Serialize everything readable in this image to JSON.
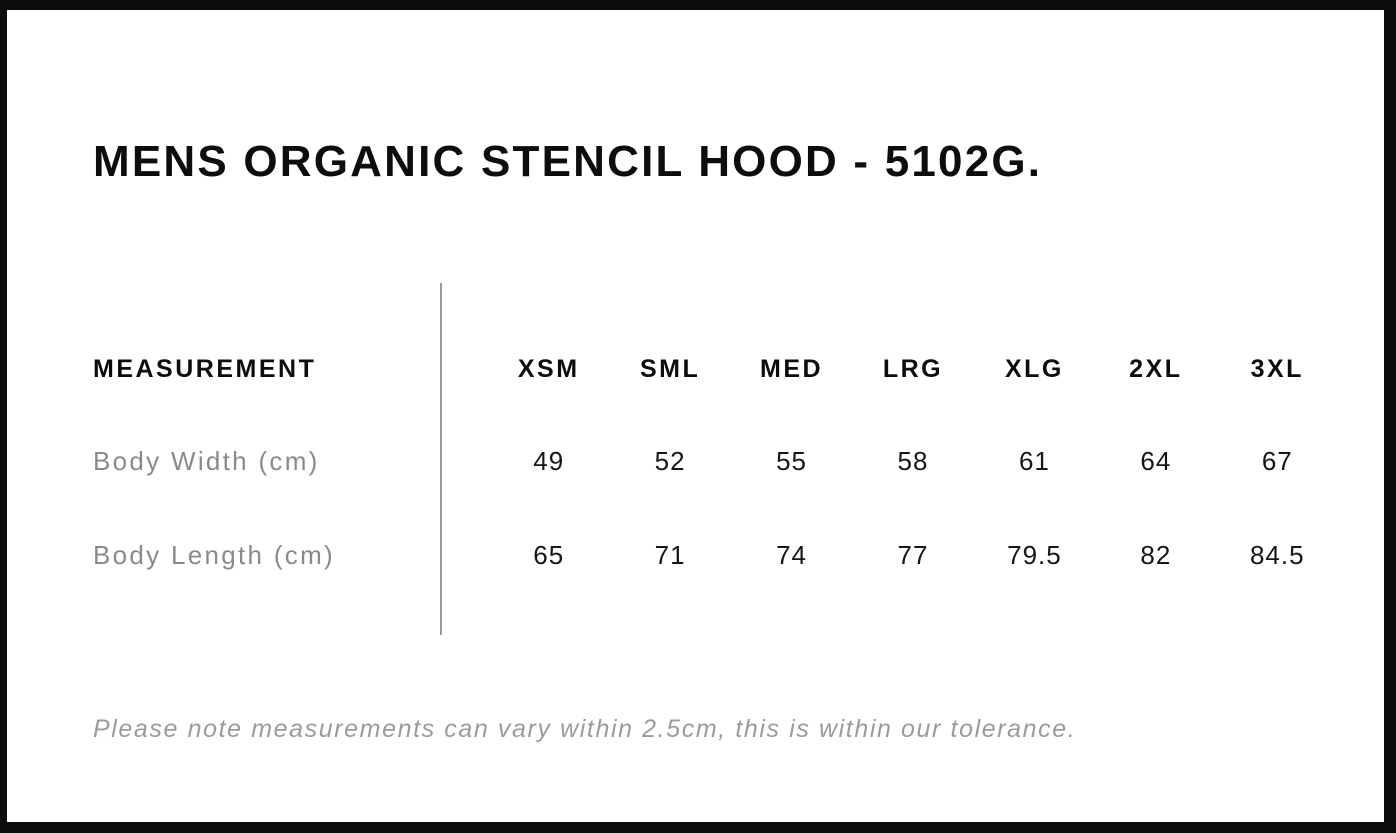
{
  "page": {
    "title": "MENS ORGANIC STENCIL HOOD - 5102G.",
    "note": "Please note measurements can vary within 2.5cm, this is within our tolerance."
  },
  "size_table": {
    "label_header": "MEASUREMENT",
    "size_headers": [
      "XSM",
      "SML",
      "MED",
      "LRG",
      "XLG",
      "2XL",
      "3XL"
    ],
    "rows": [
      {
        "label": "Body Width (cm)",
        "values": [
          "49",
          "52",
          "55",
          "58",
          "61",
          "64",
          "67"
        ]
      },
      {
        "label": "Body Length (cm)",
        "values": [
          "65",
          "71",
          "74",
          "77",
          "79.5",
          "82",
          "84.5"
        ]
      }
    ]
  },
  "colors": {
    "frame": "#0c0c0c",
    "background": "#ffffff",
    "heading_text": "#0d0d0d",
    "value_text": "#161616",
    "muted_label_text": "#8a8a8a",
    "note_text": "#9b9b9b",
    "divider": "#9a9a9a"
  }
}
